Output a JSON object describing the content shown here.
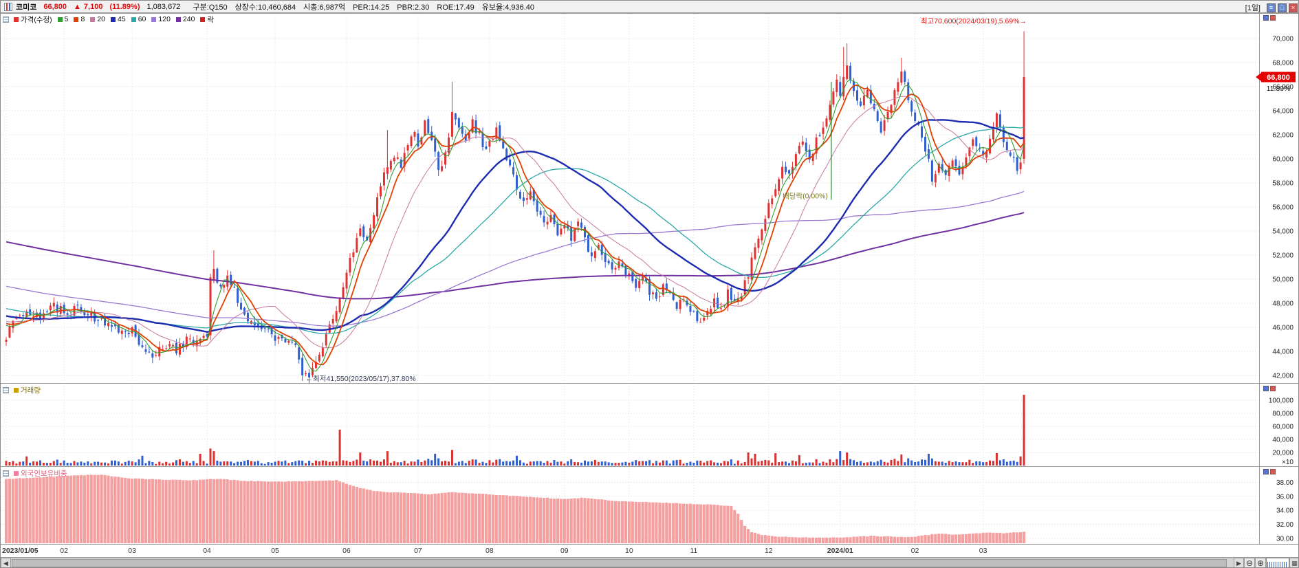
{
  "header": {
    "name": "코미코",
    "price": "66,800",
    "change_arrow": "▲",
    "change": "7,100",
    "change_pct": "(11.89%)",
    "volume": "1,083,672",
    "stats": [
      "구분:Q150",
      "상장수:10,460,684",
      "시총:6,987억",
      "PER:14.25",
      "PBR:2.30",
      "ROE:17.49",
      "유보율:4,936.40"
    ],
    "period": "[1일]",
    "window_icons": {
      "menu": "≡",
      "restore": "□",
      "close": "×"
    }
  },
  "legend": {
    "items": [
      {
        "label": "가격(수정)",
        "color": "#e13131"
      },
      {
        "label": "5",
        "color": "#2f9e2f"
      },
      {
        "label": "8",
        "color": "#e04000"
      },
      {
        "label": "20",
        "color": "#c878a0"
      },
      {
        "label": "45",
        "color": "#1c2bb0"
      },
      {
        "label": "60",
        "color": "#2ba8a8"
      },
      {
        "label": "120",
        "color": "#9a7ad0"
      },
      {
        "label": "240",
        "color": "#7030a0"
      },
      {
        "label": "락",
        "color": "#d02020"
      }
    ]
  },
  "panels": {
    "volume_label": "거래량",
    "volume_color": "#c8a000",
    "foreign_label": "외국인보유비중",
    "foreign_color": "#f080a0"
  },
  "annotations": {
    "high_label": "최고70,600(2024/03/19),5.69%→",
    "low_label": "←최저41,550(2023/05/17),37.80%",
    "dividend_label": "배당락(0.00%)",
    "badge_price": "66,800",
    "badge_pct": "11.89%"
  },
  "axes": {
    "price_ticks": [
      70000,
      68000,
      66000,
      64000,
      62000,
      60000,
      58000,
      56000,
      54000,
      52000,
      50000,
      48000,
      46000,
      44000,
      42000
    ],
    "volume_ticks": [
      100000,
      80000,
      60000,
      40000,
      20000
    ],
    "volume_unit": "×10",
    "foreign_ticks": [
      38,
      36,
      34,
      32,
      30
    ]
  },
  "scrollbar": {
    "left_arrow": "◀",
    "right_arrow": "▶",
    "zoom_out": "⊖",
    "zoom_in": "⊕"
  },
  "chart_data": {
    "type": "candlestick",
    "days": 300,
    "x_start_date": "2023/01/05",
    "x_end_date": "2024/03/19",
    "price_axis_range": [
      42000,
      70000
    ],
    "highest": {
      "value": 70600,
      "date": "2024/03/19",
      "pct_from_close": "5.69%"
    },
    "lowest": {
      "value": 41550,
      "date": "2023/05/17",
      "pct_from_close": "37.80%"
    },
    "last_candle": {
      "open": 60000,
      "high": 70600,
      "low": 59600,
      "close": 66800,
      "change": 7100,
      "change_pct": 11.89,
      "volume": 1083672
    },
    "ma_periods": [
      5,
      8,
      20,
      45,
      60,
      120,
      240
    ],
    "month_ticks": [
      [
        0,
        "2023/01/05"
      ],
      [
        17,
        "02"
      ],
      [
        37,
        "03"
      ],
      [
        59,
        "04"
      ],
      [
        79,
        "05"
      ],
      [
        100,
        "06"
      ],
      [
        121,
        "07"
      ],
      [
        142,
        "08"
      ],
      [
        164,
        "09"
      ],
      [
        183,
        "10"
      ],
      [
        202,
        "11"
      ],
      [
        224,
        "12"
      ],
      [
        245,
        "2024/01"
      ],
      [
        267,
        "02"
      ],
      [
        287,
        "03"
      ]
    ],
    "close_anchors": [
      [
        0,
        45200
      ],
      [
        3,
        46800
      ],
      [
        6,
        47500
      ],
      [
        10,
        47000
      ],
      [
        14,
        47800
      ],
      [
        17,
        47300
      ],
      [
        22,
        47600
      ],
      [
        26,
        46800
      ],
      [
        30,
        46200
      ],
      [
        34,
        45400
      ],
      [
        37,
        45800
      ],
      [
        40,
        44300
      ],
      [
        43,
        43600
      ],
      [
        46,
        44500
      ],
      [
        50,
        44200
      ],
      [
        53,
        45000
      ],
      [
        56,
        44600
      ],
      [
        59,
        45300
      ],
      [
        60,
        49800
      ],
      [
        61,
        50800
      ],
      [
        63,
        49400
      ],
      [
        65,
        50400
      ],
      [
        68,
        48400
      ],
      [
        71,
        46800
      ],
      [
        74,
        46300
      ],
      [
        77,
        45600
      ],
      [
        79,
        45100
      ],
      [
        82,
        44800
      ],
      [
        85,
        44200
      ],
      [
        87,
        42400
      ],
      [
        89,
        42000
      ],
      [
        90,
        42300
      ],
      [
        91,
        43000
      ],
      [
        93,
        44600
      ],
      [
        96,
        46500
      ],
      [
        98,
        48300
      ],
      [
        100,
        50500
      ],
      [
        102,
        52500
      ],
      [
        104,
        54000
      ],
      [
        106,
        53200
      ],
      [
        108,
        55500
      ],
      [
        110,
        57500
      ],
      [
        112,
        59600
      ],
      [
        114,
        60400
      ],
      [
        116,
        59400
      ],
      [
        118,
        61000
      ],
      [
        120,
        62000
      ],
      [
        121,
        61400
      ],
      [
        123,
        62800
      ],
      [
        125,
        61400
      ],
      [
        127,
        59000
      ],
      [
        129,
        60500
      ],
      [
        131,
        63800
      ],
      [
        133,
        62400
      ],
      [
        135,
        61800
      ],
      [
        137,
        63000
      ],
      [
        139,
        62000
      ],
      [
        141,
        60500
      ],
      [
        142,
        61500
      ],
      [
        144,
        62300
      ],
      [
        146,
        60800
      ],
      [
        148,
        59400
      ],
      [
        150,
        57800
      ],
      [
        152,
        56400
      ],
      [
        154,
        57200
      ],
      [
        156,
        55800
      ],
      [
        158,
        54500
      ],
      [
        160,
        55200
      ],
      [
        162,
        53800
      ],
      [
        164,
        54300
      ],
      [
        166,
        53500
      ],
      [
        168,
        54800
      ],
      [
        170,
        53200
      ],
      [
        172,
        52000
      ],
      [
        174,
        52800
      ],
      [
        176,
        51400
      ],
      [
        178,
        50800
      ],
      [
        180,
        51400
      ],
      [
        183,
        50200
      ],
      [
        185,
        49400
      ],
      [
        187,
        50300
      ],
      [
        189,
        49000
      ],
      [
        191,
        48200
      ],
      [
        193,
        49600
      ],
      [
        195,
        48600
      ],
      [
        197,
        47800
      ],
      [
        199,
        48500
      ],
      [
        202,
        47200
      ],
      [
        204,
        46200
      ],
      [
        206,
        47500
      ],
      [
        208,
        48300
      ],
      [
        210,
        47600
      ],
      [
        212,
        48800
      ],
      [
        214,
        47900
      ],
      [
        216,
        48600
      ],
      [
        218,
        50500
      ],
      [
        220,
        52500
      ],
      [
        222,
        54500
      ],
      [
        224,
        56000
      ],
      [
        226,
        57500
      ],
      [
        228,
        59500
      ],
      [
        230,
        58400
      ],
      [
        232,
        60500
      ],
      [
        234,
        61500
      ],
      [
        236,
        60000
      ],
      [
        238,
        61500
      ],
      [
        240,
        63000
      ],
      [
        242,
        64500
      ],
      [
        244,
        66500
      ],
      [
        245,
        65400
      ],
      [
        247,
        67500
      ],
      [
        249,
        66000
      ],
      [
        251,
        64400
      ],
      [
        253,
        65800
      ],
      [
        255,
        64000
      ],
      [
        257,
        62400
      ],
      [
        259,
        63800
      ],
      [
        261,
        65500
      ],
      [
        263,
        67000
      ],
      [
        265,
        65000
      ],
      [
        267,
        63400
      ],
      [
        269,
        61800
      ],
      [
        271,
        59800
      ],
      [
        272,
        57800
      ],
      [
        274,
        59500
      ],
      [
        276,
        58400
      ],
      [
        278,
        59800
      ],
      [
        280,
        58800
      ],
      [
        282,
        60500
      ],
      [
        284,
        61500
      ],
      [
        286,
        60800
      ],
      [
        287,
        60200
      ],
      [
        289,
        61800
      ],
      [
        291,
        63400
      ],
      [
        293,
        61400
      ],
      [
        295,
        60400
      ],
      [
        297,
        59400
      ],
      [
        298,
        59700
      ],
      [
        299,
        66800
      ]
    ],
    "close_overrides": {
      "298": 59700,
      "299": 66800
    },
    "open_overrides": {
      "0": 44800,
      "299": 60000
    },
    "high_overrides": {
      "61": 52400,
      "112": 62400,
      "131": 66400,
      "246": 69300,
      "247": 69600,
      "263": 68400,
      "299": 70600
    },
    "low_overrides": {
      "87": 41550,
      "299": 59600
    },
    "volume_overrides": {
      "6": 14000,
      "40": 15000,
      "57": 18000,
      "60": 26000,
      "61": 22000,
      "98": 55000,
      "104": 20000,
      "112": 22000,
      "126": 18000,
      "131": 24000,
      "150": 15000,
      "218": 20000,
      "220": 18000,
      "226": 19000,
      "233": 16000,
      "245": 22000,
      "247": 20000,
      "263": 17000,
      "271": 18000,
      "291": 19000,
      "298": 14000,
      "299": 108367
    },
    "dividend_marker": {
      "index": 242,
      "price_top": 66400,
      "price_bottom": 56600
    },
    "foreign_anchors": [
      [
        0,
        38.5
      ],
      [
        10,
        38.7
      ],
      [
        20,
        39.0
      ],
      [
        28,
        39.1
      ],
      [
        35,
        38.6
      ],
      [
        45,
        38.4
      ],
      [
        55,
        38.3
      ],
      [
        62,
        38.5
      ],
      [
        70,
        38.2
      ],
      [
        80,
        38.1
      ],
      [
        90,
        38.2
      ],
      [
        97,
        38.3
      ],
      [
        100,
        37.8
      ],
      [
        104,
        37.2
      ],
      [
        108,
        36.8
      ],
      [
        112,
        36.6
      ],
      [
        118,
        36.5
      ],
      [
        124,
        36.3
      ],
      [
        130,
        36.6
      ],
      [
        138,
        36.4
      ],
      [
        148,
        36.1
      ],
      [
        158,
        35.8
      ],
      [
        164,
        35.6
      ],
      [
        170,
        35.8
      ],
      [
        178,
        35.4
      ],
      [
        186,
        35.2
      ],
      [
        194,
        35.1
      ],
      [
        202,
        34.9
      ],
      [
        208,
        34.8
      ],
      [
        213,
        34.6
      ],
      [
        215,
        33.5
      ],
      [
        217,
        31.8
      ],
      [
        219,
        30.9
      ],
      [
        222,
        30.5
      ],
      [
        226,
        30.3
      ],
      [
        232,
        30.15
      ],
      [
        240,
        30.1
      ],
      [
        248,
        30.2
      ],
      [
        254,
        30.35
      ],
      [
        260,
        30.25
      ],
      [
        266,
        30.2
      ],
      [
        270,
        30.45
      ],
      [
        274,
        30.7
      ],
      [
        278,
        30.55
      ],
      [
        283,
        30.65
      ],
      [
        288,
        30.85
      ],
      [
        293,
        30.75
      ],
      [
        299,
        30.95
      ]
    ]
  }
}
